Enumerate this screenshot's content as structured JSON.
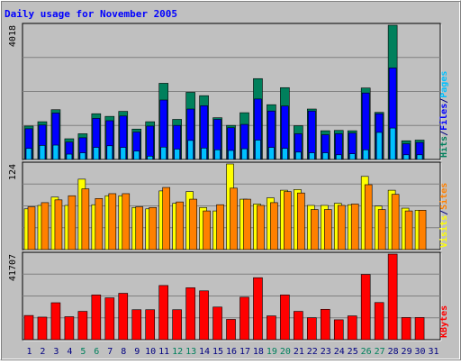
{
  "colors": {
    "background": "#c0c0c0",
    "title": "#0000ff",
    "hits": "#00805c",
    "files": "#0000ff",
    "pages": "#00c0ff",
    "visits": "#ffff00",
    "sites": "#ff8000",
    "kbytes": "#ff0000",
    "weekend": "#00805c",
    "weekday": "#000080"
  },
  "chart_data": {
    "type": "bar",
    "title": "Daily usage for November 2005",
    "x": [
      1,
      2,
      3,
      4,
      5,
      6,
      7,
      8,
      9,
      10,
      11,
      12,
      13,
      14,
      15,
      16,
      17,
      18,
      19,
      20,
      21,
      22,
      23,
      24,
      25,
      26,
      27,
      28,
      29,
      30,
      31
    ],
    "weekend_days": [
      5,
      6,
      12,
      13,
      19,
      20,
      26,
      27
    ],
    "panels": [
      {
        "id": "top",
        "max_label": "4018",
        "ylim": [
          0,
          4018
        ],
        "axis_title": [
          {
            "text": "Hits",
            "color_key": "hits"
          },
          {
            "text": "/",
            "color_key": "weekday"
          },
          {
            "text": "Files",
            "color_key": "files"
          },
          {
            "text": "/",
            "color_key": "weekday"
          },
          {
            "text": "Pages",
            "color_key": "pages"
          }
        ],
        "series": [
          {
            "name": "Hits",
            "color_key": "hits",
            "values": [
              1000,
              1130,
              1490,
              620,
              770,
              1370,
              1290,
              1440,
              910,
              1130,
              2280,
              1200,
              2010,
              1910,
              1250,
              1020,
              1400,
              2420,
              1640,
              2150,
              1010,
              1510,
              860,
              870,
              860,
              2140,
              1410,
              4018,
              560,
              580,
              0
            ]
          },
          {
            "name": "Files",
            "color_key": "files",
            "values": [
              920,
              1030,
              1390,
              520,
              650,
              1230,
              1160,
              1300,
              820,
              1000,
              1780,
              1020,
              1510,
              1610,
              1200,
              950,
              1050,
              1810,
              1450,
              1600,
              770,
              1450,
              740,
              770,
              790,
              1990,
              1370,
              2740,
              470,
              510,
              0
            ]
          },
          {
            "name": "Pages",
            "color_key": "pages",
            "values": [
              330,
              420,
              430,
              160,
              200,
              360,
              410,
              360,
              250,
              100,
              370,
              310,
              570,
              340,
              290,
              270,
              320,
              580,
              360,
              330,
              220,
              200,
              200,
              140,
              170,
              290,
              810,
              940,
              140,
              140,
              0
            ]
          }
        ]
      },
      {
        "id": "middle",
        "max_label": "124",
        "ylim": [
          0,
          124
        ],
        "axis_title": [
          {
            "text": "Visits",
            "color_key": "visits"
          },
          {
            "text": "/",
            "color_key": "weekday"
          },
          {
            "text": "Sites",
            "color_key": "sites"
          }
        ],
        "series": [
          {
            "name": "Visits",
            "color_key": "visits",
            "values": [
              59,
              64,
              76,
              64,
              102,
              65,
              78,
              78,
              61,
              59,
              85,
              67,
              84,
              61,
              56,
              124,
              73,
              66,
              75,
              86,
              87,
              64,
              64,
              67,
              65,
              106,
              63,
              86,
              60,
              57,
              0
            ]
          },
          {
            "name": "Sites",
            "color_key": "sites",
            "values": [
              62,
              68,
              72,
              78,
              88,
              74,
              81,
              81,
              62,
              61,
              90,
              69,
              73,
              56,
              65,
              89,
              73,
              64,
              68,
              84,
              82,
              58,
              58,
              64,
              66,
              94,
              58,
              80,
              56,
              57,
              0
            ]
          }
        ]
      },
      {
        "id": "bottom",
        "max_label": "41707",
        "ylim": [
          0,
          41707
        ],
        "axis_title": [
          {
            "text": "KBytes",
            "color_key": "kbytes"
          }
        ],
        "series": [
          {
            "name": "KBytes",
            "color_key": "kbytes",
            "values": [
              11800,
              11000,
              18000,
              11200,
              13800,
              21800,
              20400,
              22600,
              14600,
              14600,
              26400,
              14600,
              25300,
              23800,
              15900,
              9900,
              20700,
              30200,
              11600,
              21800,
              13800,
              10700,
              14800,
              9700,
              11600,
              31800,
              18100,
              41707,
              10800,
              10800,
              0
            ]
          }
        ]
      }
    ]
  }
}
